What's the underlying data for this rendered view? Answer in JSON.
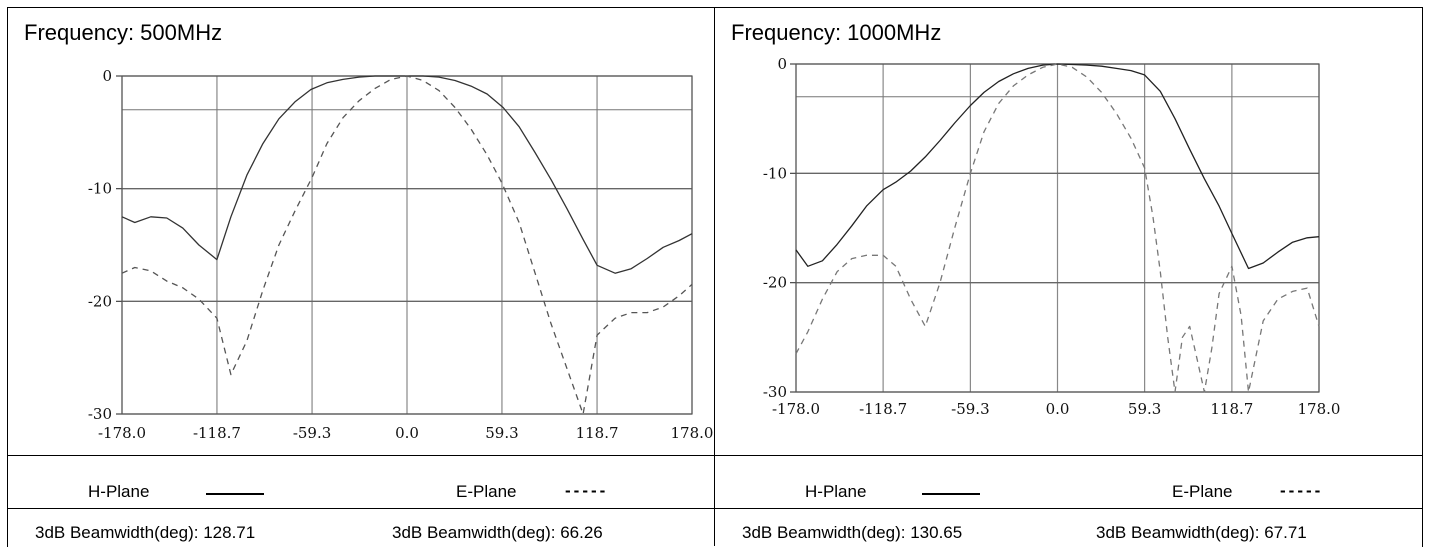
{
  "panels": [
    {
      "frequency_label": "Frequency: 500MHz",
      "legend": {
        "h_label": "H-Plane",
        "e_label": "E-Plane",
        "e_symbol": "-----"
      },
      "beamwidth": {
        "h": "3dB Beamwidth(deg): 128.71",
        "e": "3dB Beamwidth(deg): 66.26"
      }
    },
    {
      "frequency_label": "Frequency: 1000MHz",
      "legend": {
        "h_label": "H-Plane",
        "e_label": "E-Plane",
        "e_symbol": "-----"
      },
      "beamwidth": {
        "h": "3dB Beamwidth(deg): 130.65",
        "e": "3dB Beamwidth(deg): 67.71"
      }
    }
  ],
  "chart_data": [
    {
      "type": "line",
      "x_tick_labels": [
        "-178.0",
        "-118.7",
        "-59.3",
        "0.0",
        "59.3",
        "118.7",
        "178.0"
      ],
      "y_tick_labels": [
        "0",
        "-10",
        "-20",
        "-30"
      ],
      "xlim": [
        -178.0,
        178.0
      ],
      "ylim": [
        -30,
        0
      ],
      "reference_line_y": -3,
      "grid": true,
      "series": [
        {
          "name": "H-Plane",
          "style": "solid",
          "color": "#333333",
          "x": [
            -178,
            -170,
            -160,
            -150,
            -140,
            -130,
            -118.7,
            -110,
            -100,
            -90,
            -80,
            -70,
            -60,
            -50,
            -40,
            -30,
            -20,
            -10,
            0,
            10,
            20,
            30,
            40,
            50,
            60,
            70,
            80,
            90,
            100,
            110,
            118.7,
            130,
            140,
            150,
            160,
            170,
            178
          ],
          "y": [
            -12.5,
            -13,
            -12.5,
            -12.6,
            -13.5,
            -15,
            -16.3,
            -12.5,
            -8.8,
            -6,
            -3.8,
            -2.3,
            -1.2,
            -0.6,
            -0.3,
            -0.1,
            0,
            0,
            0,
            0,
            -0.1,
            -0.4,
            -0.9,
            -1.6,
            -2.8,
            -4.5,
            -6.8,
            -9.2,
            -11.8,
            -14.5,
            -16.8,
            -17.5,
            -17.1,
            -16.2,
            -15.2,
            -14.6,
            -14
          ]
        },
        {
          "name": "E-Plane",
          "style": "dashed",
          "color": "#555555",
          "x": [
            -178,
            -170,
            -160,
            -150,
            -140,
            -130,
            -118.7,
            -110,
            -100,
            -90,
            -80,
            -70,
            -59.3,
            -50,
            -40,
            -30,
            -20,
            -10,
            0,
            10,
            20,
            30,
            40,
            50,
            59.3,
            70,
            80,
            90,
            100,
            110,
            118.7,
            130,
            140,
            150,
            160,
            170,
            178
          ],
          "y": [
            -17.5,
            -17,
            -17.3,
            -18.2,
            -18.8,
            -19.8,
            -21.5,
            -26.5,
            -23.5,
            -19,
            -15,
            -12,
            -9,
            -6,
            -3.7,
            -2.2,
            -1.1,
            -0.3,
            0,
            -0.4,
            -1.3,
            -2.8,
            -4.7,
            -7,
            -9.5,
            -13,
            -17.5,
            -22,
            -26,
            -30,
            -23,
            -21.5,
            -21,
            -21,
            -20.5,
            -19.5,
            -18.5
          ]
        }
      ]
    },
    {
      "type": "line",
      "x_tick_labels": [
        "-178.0",
        "-118.7",
        "-59.3",
        "0.0",
        "59.3",
        "118.7",
        "178.0"
      ],
      "y_tick_labels": [
        "0",
        "-10",
        "-20",
        "-30"
      ],
      "xlim": [
        -178.0,
        178.0
      ],
      "ylim": [
        -30,
        0
      ],
      "reference_line_y": -3,
      "grid": true,
      "series": [
        {
          "name": "H-Plane",
          "style": "solid",
          "color": "#222222",
          "x": [
            -178,
            -170,
            -160,
            -150,
            -140,
            -130,
            -118.7,
            -110,
            -100,
            -90,
            -80,
            -70,
            -59.3,
            -50,
            -40,
            -30,
            -20,
            -10,
            0,
            10,
            20,
            30,
            40,
            50,
            59.3,
            70,
            80,
            90,
            100,
            110,
            118.7,
            130,
            140,
            150,
            160,
            170,
            178
          ],
          "y": [
            -17,
            -18.5,
            -18,
            -16.5,
            -14.8,
            -13,
            -11.5,
            -10.8,
            -9.8,
            -8.5,
            -7,
            -5.4,
            -3.8,
            -2.6,
            -1.6,
            -0.9,
            -0.4,
            -0.1,
            0,
            -0.05,
            -0.1,
            -0.2,
            -0.4,
            -0.6,
            -1,
            -2.5,
            -5,
            -7.8,
            -10.5,
            -13,
            -15.5,
            -18.7,
            -18.2,
            -17.2,
            -16.3,
            -15.9,
            -15.8
          ]
        },
        {
          "name": "E-Plane",
          "style": "dashed",
          "color": "#777777",
          "x": [
            -178,
            -170,
            -160,
            -150,
            -140,
            -130,
            -118.7,
            -110,
            -100,
            -90,
            -80,
            -70,
            -59.3,
            -50,
            -40,
            -30,
            -20,
            -10,
            0,
            10,
            20,
            30,
            40,
            50,
            59.3,
            65,
            70,
            75,
            80,
            85,
            90,
            95,
            100,
            105,
            110,
            118.7,
            125,
            130,
            140,
            150,
            160,
            170,
            178
          ],
          "y": [
            -26.5,
            -24.5,
            -21.5,
            -19,
            -17.8,
            -17.5,
            -17.5,
            -18.5,
            -21.5,
            -24,
            -20,
            -15,
            -10,
            -6.2,
            -3.6,
            -2,
            -1,
            -0.3,
            0,
            -0.3,
            -1.2,
            -2.6,
            -4.5,
            -6.8,
            -9.5,
            -14,
            -19,
            -25,
            -30,
            -25,
            -24,
            -27,
            -30,
            -26,
            -21,
            -18.5,
            -23,
            -30,
            -23.5,
            -21.5,
            -20.8,
            -20.5,
            -24
          ]
        }
      ]
    }
  ]
}
